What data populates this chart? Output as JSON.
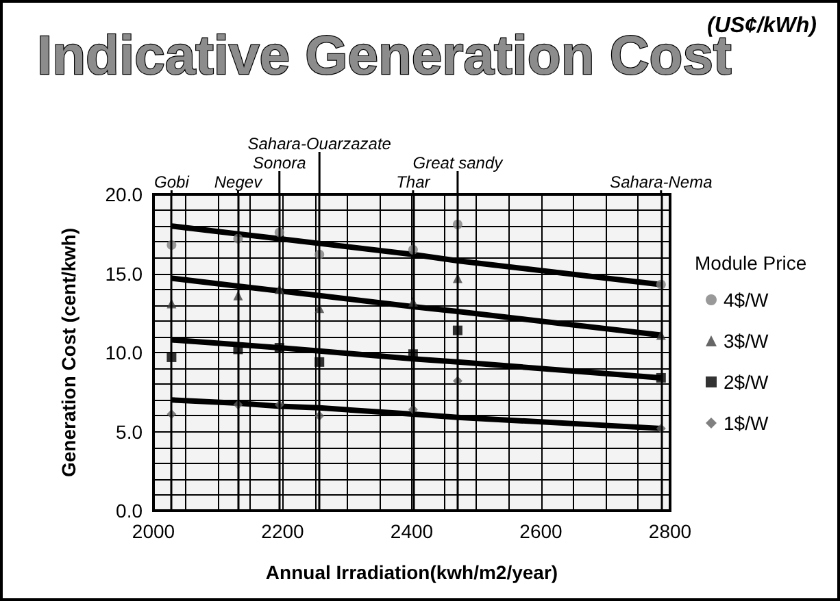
{
  "chart_data": {
    "type": "scatter",
    "title": "Indicative Generation Cost",
    "subtitle": "(US¢/kWh)",
    "xlabel": "Annual Irradiation(kwh/m2/year)",
    "ylabel": "Generation Cost (cent/kwh)",
    "legend_title": "Module Price",
    "x": [
      2028,
      2131,
      2195,
      2257,
      2402,
      2471,
      2786
    ],
    "series": [
      {
        "name": "4$/W",
        "color": "#808080",
        "marker": "circle",
        "values": [
          16.8,
          17.2,
          17.6,
          16.2,
          16.5,
          18.1,
          14.3
        ]
      },
      {
        "name": "3$/W",
        "color": "#404040",
        "marker": "triangle",
        "values": [
          13.1,
          13.6,
          14.0,
          12.8,
          13.2,
          14.7,
          11.1
        ]
      },
      {
        "name": "2$/W",
        "color": "#000000",
        "marker": "square",
        "values": [
          9.7,
          10.2,
          10.3,
          9.4,
          9.9,
          11.4,
          8.4
        ]
      },
      {
        "name": "1$/W",
        "color": "#606060",
        "marker": "diamond",
        "values": [
          6.1,
          6.7,
          6.7,
          6.0,
          6.4,
          8.2,
          5.2
        ]
      },
      {
        "type": "line",
        "color": "#000000",
        "marker": "none",
        "values": [
          18.0,
          17.5,
          17.2,
          16.9,
          16.2,
          15.8,
          14.3
        ]
      },
      {
        "type": "line",
        "color": "#000000",
        "marker": "none",
        "values": [
          14.7,
          14.2,
          13.9,
          13.6,
          12.9,
          12.6,
          11.1
        ]
      },
      {
        "type": "line",
        "color": "#000000",
        "marker": "none",
        "values": [
          10.8,
          10.5,
          10.3,
          10.1,
          9.6,
          9.4,
          8.4
        ]
      },
      {
        "type": "line",
        "color": "#000000",
        "marker": "none",
        "values": [
          7.0,
          6.8,
          6.6,
          6.5,
          6.1,
          5.9,
          5.2
        ]
      }
    ],
    "ref_lines": [
      {
        "axis": "x",
        "value": 2028,
        "label": "Gobi"
      },
      {
        "axis": "x",
        "value": 2131,
        "label": "Negev"
      },
      {
        "axis": "x",
        "value": 2195,
        "label": "Sonora"
      },
      {
        "axis": "x",
        "value": 2257,
        "label": "Sahara-Ouarzazate"
      },
      {
        "axis": "x",
        "value": 2402,
        "label": "Thar"
      },
      {
        "axis": "x",
        "value": 2471,
        "label": "Great sandy"
      },
      {
        "axis": "x",
        "value": 2786,
        "label": "Sahara-Nema"
      }
    ],
    "xlim": [
      2000,
      2800
    ],
    "xticks": [
      2000,
      2200,
      2400,
      2600,
      2800
    ],
    "ylim": [
      0,
      20
    ],
    "yticks": [
      {
        "value": 0,
        "label": "0.0"
      },
      {
        "value": 5,
        "label": "5.0"
      },
      {
        "value": 10,
        "label": "10.0"
      },
      {
        "value": 15,
        "label": "15.0"
      },
      {
        "value": 20,
        "label": "20.0"
      }
    ],
    "grid": true,
    "legend": "right"
  }
}
